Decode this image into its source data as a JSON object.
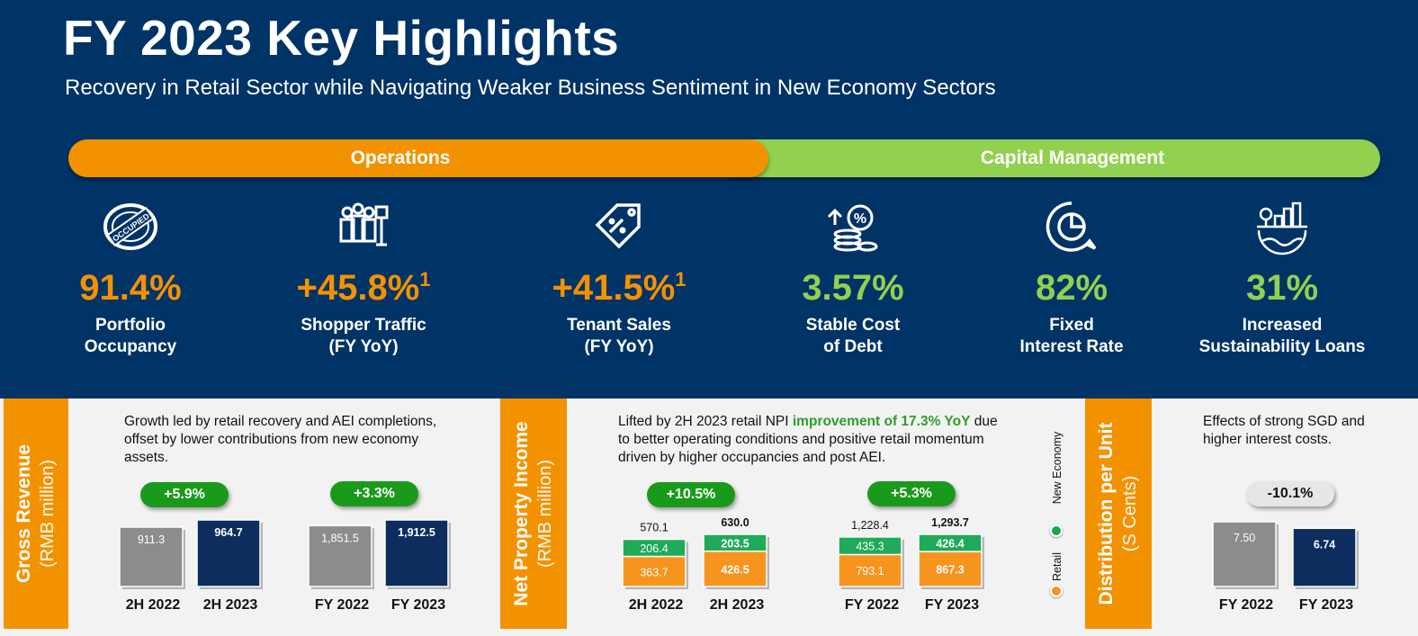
{
  "header": {
    "title": "FY 2023 Key Highlights",
    "subtitle": "Recovery in Retail Sector while Navigating Weaker Business Sentiment in New Economy Sectors"
  },
  "banners": {
    "operations": "Operations",
    "capital": "Capital Management"
  },
  "kpis": [
    {
      "icon": "occupied-stamp-icon",
      "value": "91.4%",
      "sup": "",
      "label": "Portfolio\nOccupancy",
      "color": "#f39200"
    },
    {
      "icon": "shopper-crowd-icon",
      "value": "+45.8%",
      "sup": "1",
      "label": "Shopper Traffic\n(FY YoY)",
      "color": "#f39200"
    },
    {
      "icon": "percent-tag-icon",
      "value": "+41.5%",
      "sup": "1",
      "label": "Tenant Sales\n(FY YoY)",
      "color": "#f39200"
    },
    {
      "icon": "coins-percent-icon",
      "value": "3.57%",
      "sup": "",
      "label": "Stable Cost\nof Debt",
      "color": "#92d050"
    },
    {
      "icon": "pie-chat-icon",
      "value": "82%",
      "sup": "",
      "label": "Fixed\nInterest Rate",
      "color": "#92d050"
    },
    {
      "icon": "green-city-icon",
      "value": "31%",
      "sup": "",
      "label": "Increased\nSustainability Loans",
      "color": "#92d050"
    }
  ],
  "panels": {
    "gross_revenue": {
      "metric": "Gross Revenue",
      "unit": "(RMB million)",
      "description": "Growth led by retail recovery and AEI completions, offset by lower contributions from new economy assets."
    },
    "npi": {
      "metric": "Net Property Income",
      "unit": "(RMB million)",
      "description_pre": "Lifted by 2H 2023 retail NPI ",
      "description_hl": "improvement of 17.3% YoY",
      "description_post": " due to better operating conditions and positive retail momentum driven by higher occupancies and post AEI."
    },
    "dpu": {
      "metric": "Distribution per Unit",
      "unit": "(S Cents)",
      "description": "Effects of strong SGD and higher interest costs."
    }
  },
  "legend": {
    "new_economy": "New Economy",
    "retail": "Retail"
  },
  "colors": {
    "navy": "#003366",
    "orange": "#f39200",
    "lime": "#92d050",
    "bar_grey": "#8c8c8c",
    "bar_navy": "#0d2d5e",
    "npi_green": "#1faa59",
    "npi_orange": "#f7941d"
  },
  "chart_data": [
    {
      "type": "bar",
      "title": "Gross Revenue",
      "ylabel": "(RMB million)",
      "categories": [
        "2H 2022",
        "2H 2023",
        "FY 2022",
        "FY 2023"
      ],
      "values": [
        911.3,
        964.7,
        1851.5,
        1912.5
      ],
      "value_labels": [
        "911.3",
        "964.7",
        "1,851.5",
        "1,912.5"
      ],
      "growth": [
        "+5.9%",
        "+3.3%"
      ]
    },
    {
      "type": "bar",
      "title": "Net Property Income",
      "ylabel": "(RMB million)",
      "stacked": true,
      "categories": [
        "2H 2022",
        "2H 2023",
        "FY 2022",
        "FY 2023"
      ],
      "totals": [
        570.1,
        630.0,
        1228.4,
        1293.7
      ],
      "total_labels": [
        "570.1",
        "630.0",
        "1,228.4",
        "1,293.7"
      ],
      "series": [
        {
          "name": "Retail",
          "values": [
            363.7,
            426.5,
            793.1,
            867.3
          ],
          "labels": [
            "363.7",
            "426.5",
            "793.1",
            "867.3"
          ]
        },
        {
          "name": "New Economy",
          "values": [
            206.4,
            203.5,
            435.3,
            426.4
          ],
          "labels": [
            "206.4",
            "203.5",
            "435.3",
            "426.4"
          ]
        }
      ],
      "growth": [
        "+10.5%",
        "+5.3%"
      ]
    },
    {
      "type": "bar",
      "title": "Distribution per Unit",
      "ylabel": "(S Cents)",
      "categories": [
        "FY 2022",
        "FY 2023"
      ],
      "values": [
        7.5,
        6.74
      ],
      "value_labels": [
        "7.50",
        "6.74"
      ],
      "growth": [
        "-10.1%"
      ]
    }
  ]
}
